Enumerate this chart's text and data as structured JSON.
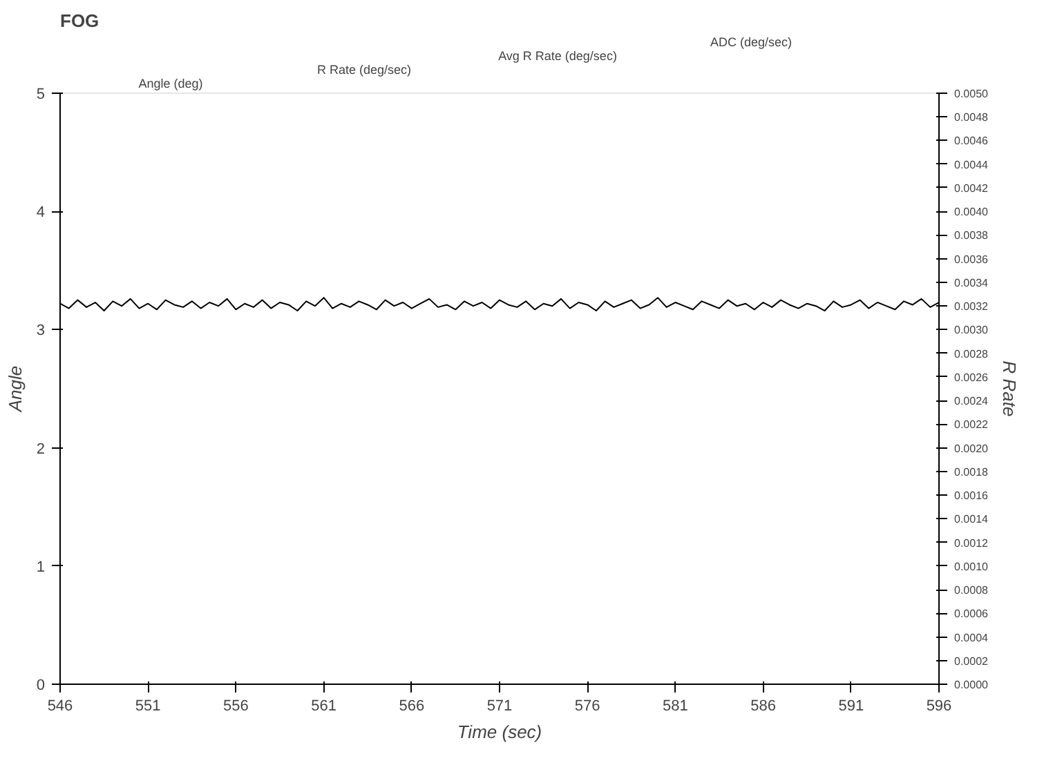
{
  "chart_data": {
    "type": "line",
    "title": "FOG",
    "xlabel": "Time (sec)",
    "ylabel": "Angle",
    "y2label": "R Rate",
    "annotations": [
      "Angle (deg)",
      "R Rate (deg/sec)",
      "Avg R Rate (deg/sec)",
      "ADC (deg/sec)"
    ],
    "xlim": [
      546,
      596
    ],
    "xticks": [
      546,
      551,
      556,
      561,
      566,
      571,
      576,
      581,
      586,
      591,
      596
    ],
    "ylim": [
      0,
      5
    ],
    "yticks": [
      0,
      1,
      2,
      3,
      4,
      5
    ],
    "y2lim": [
      0,
      0.005
    ],
    "y2ticks": [
      {
        "value": 0,
        "label": "0.0000"
      },
      {
        "value": 0.0002,
        "label": "0.0002"
      },
      {
        "value": 0.0004,
        "label": "0.0004"
      },
      {
        "value": 0.0006,
        "label": "0.0006"
      },
      {
        "value": 0.0008,
        "label": "0.0008"
      },
      {
        "value": 0.001,
        "label": "0.0010"
      },
      {
        "value": 0.0012,
        "label": "0.0012"
      },
      {
        "value": 0.0014,
        "label": "0.0014"
      },
      {
        "value": 0.0016,
        "label": "0.0016"
      },
      {
        "value": 0.0018,
        "label": "0.0018"
      },
      {
        "value": 0.002,
        "label": "0.0020"
      },
      {
        "value": 0.0022,
        "label": "0.0022"
      },
      {
        "value": 0.0024,
        "label": "0.0024"
      },
      {
        "value": 0.0026,
        "label": "0.0026"
      },
      {
        "value": 0.0028,
        "label": "0.0028"
      },
      {
        "value": 0.003,
        "label": "0.0030"
      },
      {
        "value": 0.0032,
        "label": "0.0032"
      },
      {
        "value": 0.0034,
        "label": "0.0034"
      },
      {
        "value": 0.0036,
        "label": "0.0036"
      },
      {
        "value": 0.0038,
        "label": "0.0038"
      },
      {
        "value": 0.004,
        "label": "0.0040"
      },
      {
        "value": 0.0042,
        "label": "0.0042"
      },
      {
        "value": 0.0044,
        "label": "0.0044"
      },
      {
        "value": 0.0046,
        "label": "0.0046"
      },
      {
        "value": 0.0048,
        "label": "0.0048"
      },
      {
        "value": 0.005,
        "label": "0.0050"
      }
    ],
    "grid": false,
    "marker": "none",
    "line_style": "solid",
    "x": [
      546,
      546.5,
      547,
      547.5,
      548,
      548.5,
      549,
      549.5,
      550,
      550.5,
      551,
      551.5,
      552,
      552.5,
      553,
      553.5,
      554,
      554.5,
      555,
      555.5,
      556,
      556.5,
      557,
      557.5,
      558,
      558.5,
      559,
      559.5,
      560,
      560.5,
      561,
      561.5,
      562,
      562.5,
      563,
      563.5,
      564,
      564.5,
      565,
      565.5,
      566,
      566.5,
      567,
      567.5,
      568,
      568.5,
      569,
      569.5,
      570,
      570.5,
      571,
      571.5,
      572,
      572.5,
      573,
      573.5,
      574,
      574.5,
      575,
      575.5,
      576,
      576.5,
      577,
      577.5,
      578,
      578.5,
      579,
      579.5,
      580,
      580.5,
      581,
      581.5,
      582,
      582.5,
      583,
      583.5,
      584,
      584.5,
      585,
      585.5,
      586,
      586.5,
      587,
      587.5,
      588,
      588.5,
      589,
      589.5,
      590,
      590.5,
      591,
      591.5,
      592,
      592.5,
      593,
      593.5,
      594,
      594.5,
      595,
      595.5,
      596
    ],
    "series": [
      {
        "color": "#000000",
        "axis": "y2",
        "values": [
          0.00322,
          0.00318,
          0.00325,
          0.00319,
          0.00323,
          0.00316,
          0.00324,
          0.0032,
          0.00326,
          0.00318,
          0.00322,
          0.00317,
          0.00325,
          0.00321,
          0.00319,
          0.00324,
          0.00318,
          0.00323,
          0.0032,
          0.00326,
          0.00317,
          0.00322,
          0.00319,
          0.00325,
          0.00318,
          0.00323,
          0.00321,
          0.00316,
          0.00324,
          0.0032,
          0.00327,
          0.00318,
          0.00322,
          0.00319,
          0.00324,
          0.00321,
          0.00317,
          0.00325,
          0.0032,
          0.00323,
          0.00318,
          0.00322,
          0.00326,
          0.00319,
          0.00321,
          0.00317,
          0.00324,
          0.0032,
          0.00323,
          0.00318,
          0.00325,
          0.00321,
          0.00319,
          0.00324,
          0.00317,
          0.00322,
          0.0032,
          0.00326,
          0.00318,
          0.00323,
          0.00321,
          0.00316,
          0.00324,
          0.00319,
          0.00322,
          0.00325,
          0.00318,
          0.00321,
          0.00327,
          0.00319,
          0.00323,
          0.0032,
          0.00317,
          0.00324,
          0.00321,
          0.00318,
          0.00325,
          0.0032,
          0.00322,
          0.00317,
          0.00323,
          0.00319,
          0.00325,
          0.00321,
          0.00318,
          0.00322,
          0.0032,
          0.00316,
          0.00324,
          0.00319,
          0.00321,
          0.00325,
          0.00318,
          0.00323,
          0.0032,
          0.00317,
          0.00324,
          0.00321,
          0.00326,
          0.00319,
          0.00323
        ]
      }
    ]
  }
}
